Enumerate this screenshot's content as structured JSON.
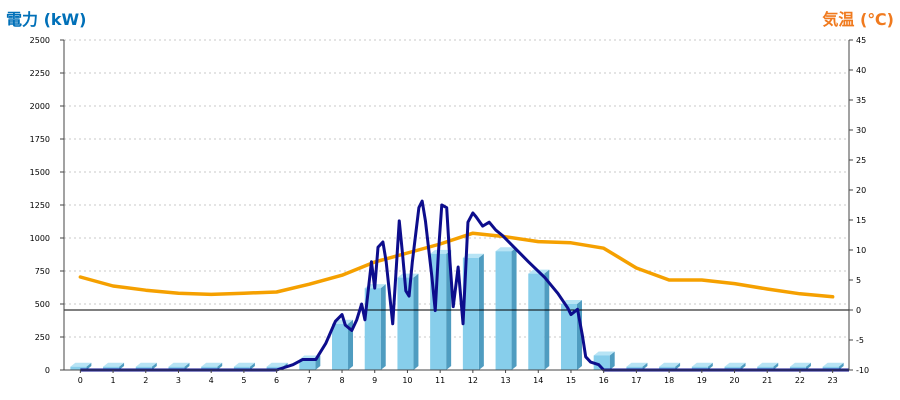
{
  "chart_data": {
    "type": "bar",
    "left_title": "電力 (kW)",
    "right_title": "気温 (℃)",
    "categories": [
      "0",
      "1",
      "2",
      "3",
      "4",
      "5",
      "6",
      "7",
      "8",
      "9",
      "10",
      "11",
      "12",
      "13",
      "14",
      "15",
      "16",
      "17",
      "18",
      "19",
      "20",
      "21",
      "22",
      "23"
    ],
    "y_left": {
      "min": 0,
      "max": 2500,
      "ticks": [
        0,
        250,
        500,
        750,
        1000,
        1250,
        1500,
        1750,
        2000,
        2250,
        2500
      ]
    },
    "y_right": {
      "min": -10,
      "max": 45,
      "ticks": [
        -10,
        -5,
        0,
        5,
        10,
        15,
        20,
        25,
        30,
        35,
        40,
        45
      ]
    },
    "reference_line": {
      "axis": "right",
      "value": 0
    },
    "bars": {
      "values": [
        25,
        25,
        25,
        25,
        25,
        25,
        25,
        80,
        350,
        620,
        700,
        880,
        850,
        900,
        730,
        500,
        110,
        25,
        25,
        25,
        25,
        25,
        25,
        25
      ],
      "color": "#87ceeb",
      "side_color": "#4f9cc0",
      "top_color": "#b7e4f5"
    },
    "power_line": {
      "color": "#0d0d8c",
      "points": [
        [
          0,
          0
        ],
        [
          6,
          0
        ],
        [
          6.5,
          40
        ],
        [
          6.8,
          80
        ],
        [
          7.2,
          80
        ],
        [
          7.5,
          200
        ],
        [
          7.8,
          370
        ],
        [
          8.0,
          420
        ],
        [
          8.1,
          340
        ],
        [
          8.3,
          300
        ],
        [
          8.45,
          380
        ],
        [
          8.6,
          500
        ],
        [
          8.7,
          380
        ],
        [
          8.9,
          820
        ],
        [
          9.0,
          620
        ],
        [
          9.1,
          930
        ],
        [
          9.25,
          970
        ],
        [
          9.35,
          820
        ],
        [
          9.55,
          350
        ],
        [
          9.75,
          1130
        ],
        [
          9.85,
          880
        ],
        [
          9.95,
          600
        ],
        [
          10.05,
          560
        ],
        [
          10.15,
          820
        ],
        [
          10.35,
          1230
        ],
        [
          10.45,
          1280
        ],
        [
          10.55,
          1130
        ],
        [
          10.75,
          700
        ],
        [
          10.85,
          450
        ],
        [
          10.95,
          900
        ],
        [
          11.05,
          1250
        ],
        [
          11.2,
          1230
        ],
        [
          11.3,
          820
        ],
        [
          11.4,
          480
        ],
        [
          11.55,
          780
        ],
        [
          11.7,
          350
        ],
        [
          11.85,
          1120
        ],
        [
          12.0,
          1190
        ],
        [
          12.1,
          1160
        ],
        [
          12.3,
          1090
        ],
        [
          12.5,
          1120
        ],
        [
          12.7,
          1060
        ],
        [
          12.9,
          1020
        ],
        [
          13.3,
          920
        ],
        [
          13.7,
          820
        ],
        [
          14.2,
          700
        ],
        [
          14.6,
          580
        ],
        [
          14.9,
          470
        ],
        [
          15.0,
          420
        ],
        [
          15.2,
          460
        ],
        [
          15.35,
          260
        ],
        [
          15.45,
          100
        ],
        [
          15.6,
          60
        ],
        [
          15.85,
          40
        ],
        [
          16.0,
          0
        ],
        [
          23.5,
          0
        ]
      ]
    },
    "temperature_line": {
      "color": "#f5a000",
      "values": [
        5.5,
        4.0,
        3.3,
        2.8,
        2.6,
        2.8,
        3.0,
        4.3,
        5.8,
        8.0,
        9.5,
        11.0,
        12.8,
        12.2,
        11.4,
        11.2,
        10.3,
        7.0,
        5.0,
        5.0,
        4.4,
        3.5,
        2.7,
        2.2
      ]
    },
    "grid": true
  }
}
